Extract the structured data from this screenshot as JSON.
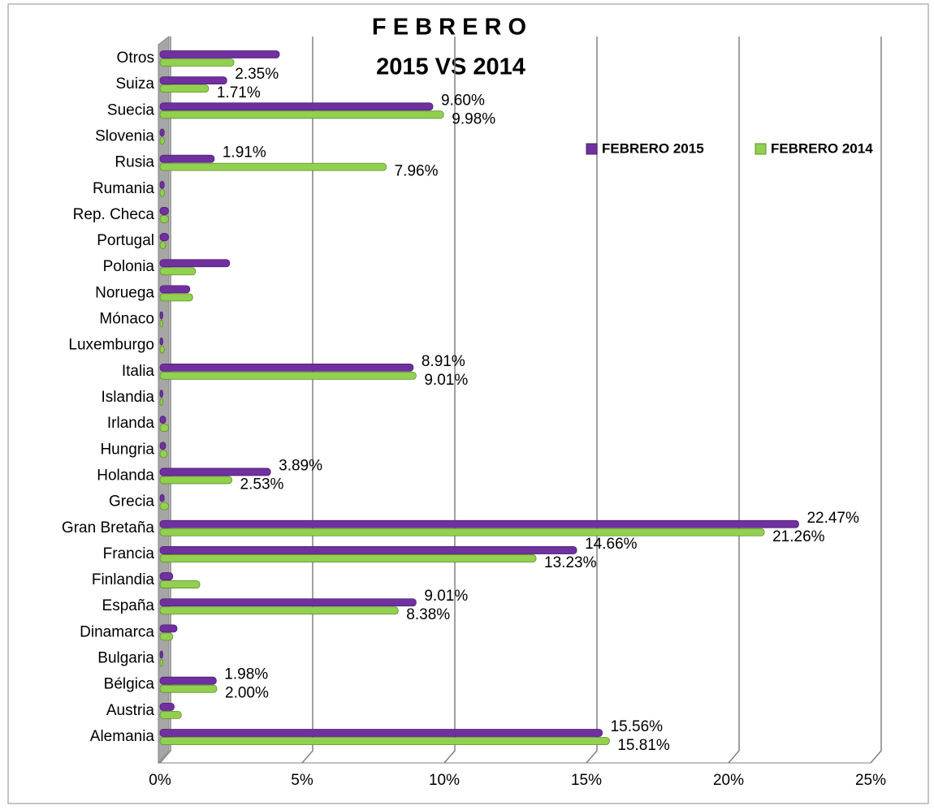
{
  "chart_data": {
    "type": "bar",
    "orientation": "horizontal",
    "title": [
      "F E B R E R O",
      "2015  VS  2014"
    ],
    "categories": [
      "Alemania",
      "Austria",
      "Bélgica",
      "Bulgaria",
      "Dinamarca",
      "España",
      "Finlandia",
      "Francia",
      "Gran Bretaña",
      "Grecia",
      "Holanda",
      "Hungria",
      "Irlanda",
      "Islandia",
      "Italia",
      "Luxemburgo",
      "Mónaco",
      "Noruega",
      "Polonia",
      "Portugal",
      "Rep. Checa",
      "Rumania",
      "Rusia",
      "Slovenia",
      "Suecia",
      "Suiza",
      "Otros"
    ],
    "series": [
      {
        "name": "FEBRERO  2015",
        "color": "#7030a0",
        "values": [
          15.56,
          0.5,
          1.98,
          0.1,
          0.6,
          9.01,
          0.45,
          14.66,
          22.47,
          0.15,
          3.89,
          0.2,
          0.2,
          0.1,
          8.91,
          0.1,
          0.1,
          1.05,
          2.45,
          0.3,
          0.3,
          0.15,
          1.91,
          0.15,
          9.6,
          2.35,
          4.2
        ],
        "value_labels": [
          "15.56%",
          null,
          "1.98%",
          null,
          null,
          "9.01%",
          null,
          "14.66%",
          "22.47%",
          null,
          "3.89%",
          null,
          null,
          null,
          "8.91%",
          null,
          null,
          null,
          null,
          null,
          null,
          null,
          "1.91%",
          null,
          "9.60%",
          "2.35%",
          null
        ]
      },
      {
        "name": "FEBRERO  2014",
        "color": "#92d050",
        "values": [
          15.81,
          0.75,
          2.0,
          0.1,
          0.45,
          8.38,
          1.4,
          13.23,
          21.26,
          0.3,
          2.53,
          0.25,
          0.3,
          0.1,
          9.01,
          0.15,
          0.1,
          1.15,
          1.25,
          0.2,
          0.3,
          0.15,
          7.96,
          0.15,
          9.98,
          1.71,
          2.6
        ],
        "value_labels": [
          "15.81%",
          null,
          "2.00%",
          null,
          null,
          "8.38%",
          null,
          "13.23%",
          "21.26%",
          null,
          "2.53%",
          null,
          null,
          null,
          "9.01%",
          null,
          null,
          null,
          null,
          null,
          null,
          null,
          "7.96%",
          null,
          "9.98%",
          "1.71%",
          null
        ]
      }
    ],
    "xlim": [
      0,
      25
    ],
    "xticks": [
      {
        "value": 0,
        "label": "0%"
      },
      {
        "value": 5,
        "label": "5%"
      },
      {
        "value": 10,
        "label": "10%"
      },
      {
        "value": 15,
        "label": "15%"
      },
      {
        "value": 20,
        "label": "20%"
      },
      {
        "value": 25,
        "label": "25%"
      }
    ],
    "grid": true,
    "legend": "upper right"
  }
}
